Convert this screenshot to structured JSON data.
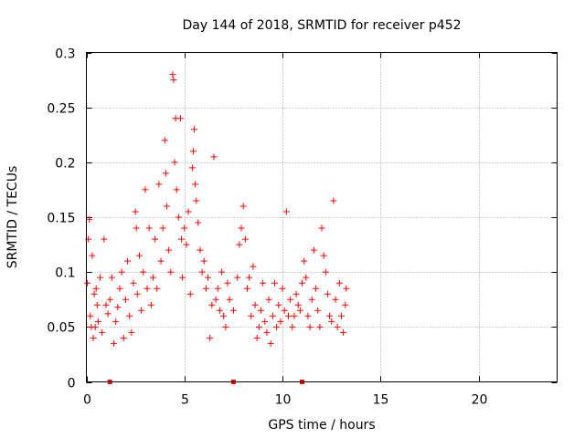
{
  "chart_data": {
    "type": "scatter",
    "title": "Day 144 of 2018, SRMTID for receiver p452",
    "xlabel": "GPS time / hours",
    "ylabel": "SRMTID / TECUs",
    "xlim": [
      0,
      24
    ],
    "ylim": [
      0,
      0.3
    ],
    "xticks": [
      0,
      5,
      10,
      15,
      20
    ],
    "xtick_labels": [
      "0",
      "5",
      "10",
      "15",
      "20"
    ],
    "yticks": [
      0,
      0.05,
      0.1,
      0.15,
      0.2,
      0.25,
      0.3
    ],
    "ytick_labels": [
      "0",
      "0.05",
      "0.1",
      "0.15",
      "0.2",
      "0.25",
      "0.3"
    ],
    "grid": true,
    "marker": "plus",
    "color": "#ff0000",
    "zero_value_markers": {
      "x": [
        1.2,
        7.5,
        11.0
      ],
      "y": 0
    },
    "series": [
      {
        "name": "SRMTID",
        "points": [
          [
            0.05,
            0.09
          ],
          [
            0.1,
            0.13
          ],
          [
            0.15,
            0.148
          ],
          [
            0.2,
            0.06
          ],
          [
            0.25,
            0.05
          ],
          [
            0.3,
            0.115
          ],
          [
            0.35,
            0.04
          ],
          [
            0.4,
            0.08
          ],
          [
            0.45,
            0.05
          ],
          [
            0.5,
            0.085
          ],
          [
            0.55,
            0.07
          ],
          [
            0.6,
            0.055
          ],
          [
            0.7,
            0.095
          ],
          [
            0.8,
            0.045
          ],
          [
            0.9,
            0.13
          ],
          [
            1.0,
            0.07
          ],
          [
            1.1,
            0.062
          ],
          [
            1.2,
            0.075
          ],
          [
            1.3,
            0.095
          ],
          [
            1.4,
            0.035
          ],
          [
            1.5,
            0.055
          ],
          [
            1.6,
            0.068
          ],
          [
            1.7,
            0.085
          ],
          [
            1.8,
            0.1
          ],
          [
            1.9,
            0.04
          ],
          [
            2.0,
            0.075
          ],
          [
            2.1,
            0.11
          ],
          [
            2.2,
            0.06
          ],
          [
            2.3,
            0.045
          ],
          [
            2.4,
            0.09
          ],
          [
            2.5,
            0.155
          ],
          [
            2.55,
            0.14
          ],
          [
            2.6,
            0.08
          ],
          [
            2.7,
            0.115
          ],
          [
            2.8,
            0.065
          ],
          [
            2.9,
            0.1
          ],
          [
            3.0,
            0.175
          ],
          [
            3.1,
            0.085
          ],
          [
            3.2,
            0.14
          ],
          [
            3.3,
            0.07
          ],
          [
            3.4,
            0.095
          ],
          [
            3.5,
            0.13
          ],
          [
            3.6,
            0.085
          ],
          [
            3.7,
            0.18
          ],
          [
            3.8,
            0.11
          ],
          [
            3.9,
            0.14
          ],
          [
            4.0,
            0.22
          ],
          [
            4.05,
            0.19
          ],
          [
            4.1,
            0.16
          ],
          [
            4.2,
            0.12
          ],
          [
            4.3,
            0.1
          ],
          [
            4.4,
            0.28
          ],
          [
            4.45,
            0.275
          ],
          [
            4.5,
            0.2
          ],
          [
            4.55,
            0.24
          ],
          [
            4.6,
            0.175
          ],
          [
            4.7,
            0.15
          ],
          [
            4.8,
            0.24
          ],
          [
            4.85,
            0.13
          ],
          [
            4.9,
            0.095
          ],
          [
            5.0,
            0.14
          ],
          [
            5.1,
            0.125
          ],
          [
            5.2,
            0.155
          ],
          [
            5.3,
            0.08
          ],
          [
            5.4,
            0.195
          ],
          [
            5.45,
            0.21
          ],
          [
            5.5,
            0.23
          ],
          [
            5.55,
            0.18
          ],
          [
            5.6,
            0.165
          ],
          [
            5.7,
            0.145
          ],
          [
            5.8,
            0.12
          ],
          [
            5.9,
            0.1
          ],
          [
            6.0,
            0.11
          ],
          [
            6.1,
            0.085
          ],
          [
            6.2,
            0.095
          ],
          [
            6.3,
            0.04
          ],
          [
            6.4,
            0.07
          ],
          [
            6.5,
            0.205
          ],
          [
            6.6,
            0.075
          ],
          [
            6.7,
            0.085
          ],
          [
            6.8,
            0.065
          ],
          [
            6.9,
            0.1
          ],
          [
            7.0,
            0.06
          ],
          [
            7.1,
            0.05
          ],
          [
            7.2,
            0.09
          ],
          [
            7.3,
            0.075
          ],
          [
            7.5,
            0.065
          ],
          [
            7.7,
            0.095
          ],
          [
            7.8,
            0.125
          ],
          [
            7.9,
            0.14
          ],
          [
            8.0,
            0.16
          ],
          [
            8.1,
            0.13
          ],
          [
            8.2,
            0.085
          ],
          [
            8.3,
            0.095
          ],
          [
            8.4,
            0.06
          ],
          [
            8.5,
            0.105
          ],
          [
            8.6,
            0.07
          ],
          [
            8.7,
            0.04
          ],
          [
            8.8,
            0.05
          ],
          [
            8.9,
            0.065
          ],
          [
            9.0,
            0.09
          ],
          [
            9.1,
            0.055
          ],
          [
            9.2,
            0.045
          ],
          [
            9.3,
            0.075
          ],
          [
            9.4,
            0.035
          ],
          [
            9.5,
            0.06
          ],
          [
            9.6,
            0.09
          ],
          [
            9.7,
            0.05
          ],
          [
            9.8,
            0.07
          ],
          [
            9.9,
            0.055
          ],
          [
            10.0,
            0.085
          ],
          [
            10.1,
            0.065
          ],
          [
            10.2,
            0.155
          ],
          [
            10.3,
            0.06
          ],
          [
            10.4,
            0.075
          ],
          [
            10.5,
            0.05
          ],
          [
            10.6,
            0.06
          ],
          [
            10.7,
            0.08
          ],
          [
            10.8,
            0.07
          ],
          [
            10.9,
            0.065
          ],
          [
            11.0,
            0.09
          ],
          [
            11.1,
            0.11
          ],
          [
            11.2,
            0.095
          ],
          [
            11.3,
            0.06
          ],
          [
            11.4,
            0.05
          ],
          [
            11.5,
            0.075
          ],
          [
            11.6,
            0.12
          ],
          [
            11.7,
            0.085
          ],
          [
            11.8,
            0.065
          ],
          [
            11.9,
            0.05
          ],
          [
            12.0,
            0.14
          ],
          [
            12.1,
            0.115
          ],
          [
            12.2,
            0.1
          ],
          [
            12.3,
            0.08
          ],
          [
            12.4,
            0.06
          ],
          [
            12.5,
            0.055
          ],
          [
            12.6,
            0.165
          ],
          [
            12.7,
            0.075
          ],
          [
            12.8,
            0.05
          ],
          [
            12.9,
            0.09
          ],
          [
            13.0,
            0.06
          ],
          [
            13.1,
            0.045
          ],
          [
            13.2,
            0.07
          ],
          [
            13.25,
            0.085
          ]
        ]
      }
    ]
  }
}
